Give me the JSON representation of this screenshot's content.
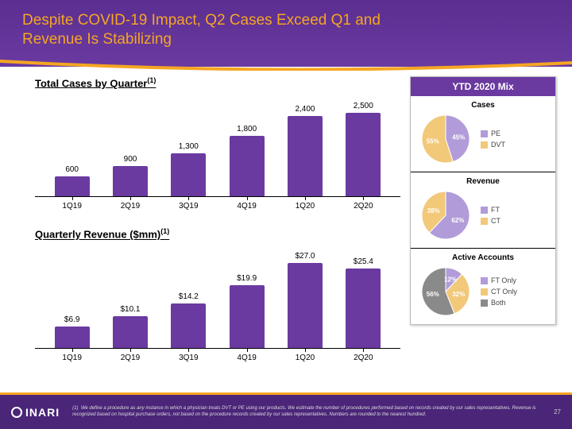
{
  "header": {
    "title_line1": "Despite COVID-19 Impact, Q2 Cases Exceed Q1 and",
    "title_line2": "Revenue Is Stabilizing",
    "title_color": "#f5a623",
    "bg_color": "#5b2e91",
    "swoosh_color": "#f5a623"
  },
  "cases_chart": {
    "title": "Total Cases by Quarter",
    "superscript": "(1)",
    "type": "bar",
    "categories": [
      "1Q19",
      "2Q19",
      "3Q19",
      "4Q19",
      "1Q20",
      "2Q20"
    ],
    "values": [
      600,
      900,
      1300,
      1800,
      2400,
      2500
    ],
    "labels": [
      "600",
      "900",
      "1,300",
      "1,800",
      "2,400",
      "2,500"
    ],
    "ymax": 2800,
    "bar_color": "#6a3aa0"
  },
  "revenue_chart": {
    "title": "Quarterly Revenue ($mm)",
    "superscript": "(1)",
    "type": "bar",
    "categories": [
      "1Q19",
      "2Q19",
      "3Q19",
      "4Q19",
      "1Q20",
      "2Q20"
    ],
    "values": [
      6.9,
      10.1,
      14.2,
      19.9,
      27.0,
      25.4
    ],
    "labels": [
      "$6.9",
      "$10.1",
      "$14.2",
      "$19.9",
      "$27.0",
      "$25.4"
    ],
    "ymax": 30,
    "bar_color": "#6a3aa0"
  },
  "mix": {
    "header": "YTD 2020 Mix",
    "header_bg": "#6a3aa0",
    "sections": [
      {
        "title": "Cases",
        "slices": [
          {
            "label": "PE",
            "pct": 45,
            "color": "#b19cd9"
          },
          {
            "label": "DVT",
            "pct": 55,
            "color": "#f2c879"
          }
        ]
      },
      {
        "title": "Revenue",
        "slices": [
          {
            "label": "FT",
            "pct": 62,
            "color": "#b19cd9"
          },
          {
            "label": "CT",
            "pct": 38,
            "color": "#f2c879"
          }
        ]
      },
      {
        "title": "Active Accounts",
        "slices": [
          {
            "label": "FT Only",
            "pct": 12,
            "color": "#b19cd9"
          },
          {
            "label": "CT Only",
            "pct": 32,
            "color": "#f2c879"
          },
          {
            "label": "Both",
            "pct": 56,
            "color": "#8a8a8a"
          }
        ]
      }
    ]
  },
  "footer": {
    "logo": "INARI",
    "footnote_marker": "(1)",
    "footnote": "We define a procedure as any instance in which a physician treats DVT or PE using our products. We estimate the number of procedures performed based on records created by our sales representatives. Revenue is recognized based on hospital purchase orders, not based on the procedure records created by our sales representatives. Numbers are rounded to the nearest hundred.",
    "page": "27"
  }
}
